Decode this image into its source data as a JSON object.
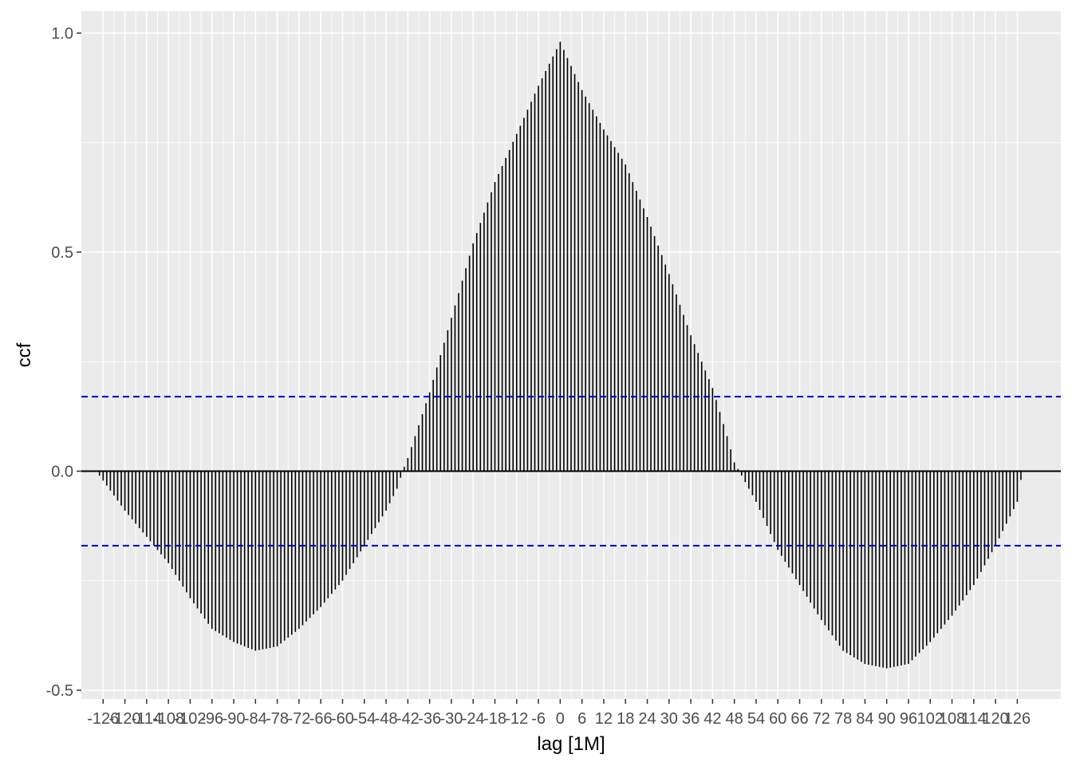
{
  "chart_data": {
    "type": "bar",
    "xlabel": "lag [1M]",
    "ylabel": "ccf",
    "xlim": [
      -132,
      138
    ],
    "ylim": [
      -0.52,
      1.05
    ],
    "grid": true,
    "x_ticks": [
      -126,
      -120,
      -114,
      -108,
      -102,
      -96,
      -90,
      -84,
      -78,
      -72,
      -66,
      -60,
      -54,
      -48,
      -42,
      -36,
      -30,
      -24,
      -18,
      -12,
      -6,
      0,
      6,
      12,
      18,
      24,
      30,
      36,
      42,
      48,
      54,
      60,
      66,
      72,
      78,
      84,
      90,
      96,
      102,
      108,
      114,
      120,
      126
    ],
    "y_ticks": [
      -0.5,
      0.0,
      0.5,
      1.0
    ],
    "y_tick_labels": [
      "-0.5",
      "0.0",
      "0.5",
      "1.0"
    ],
    "confidence_bounds": [
      0.17,
      -0.17
    ],
    "colors": {
      "panel": "#ebebeb",
      "grid": "#ffffff",
      "bar": "#000000",
      "bound": "#0000cc"
    },
    "knots": [
      [
        -127,
        -0.01
      ],
      [
        -120,
        -0.09
      ],
      [
        -114,
        -0.15
      ],
      [
        -108,
        -0.21
      ],
      [
        -102,
        -0.29
      ],
      [
        -96,
        -0.36
      ],
      [
        -90,
        -0.39
      ],
      [
        -84,
        -0.41
      ],
      [
        -78,
        -0.4
      ],
      [
        -72,
        -0.36
      ],
      [
        -66,
        -0.31
      ],
      [
        -60,
        -0.25
      ],
      [
        -54,
        -0.17
      ],
      [
        -48,
        -0.09
      ],
      [
        -45,
        -0.04
      ],
      [
        -43,
        0.01
      ],
      [
        -42,
        0.03
      ],
      [
        -36,
        0.18
      ],
      [
        -30,
        0.35
      ],
      [
        -24,
        0.52
      ],
      [
        -18,
        0.66
      ],
      [
        -12,
        0.77
      ],
      [
        -6,
        0.88
      ],
      [
        0,
        0.98
      ],
      [
        6,
        0.87
      ],
      [
        12,
        0.78
      ],
      [
        18,
        0.7
      ],
      [
        24,
        0.58
      ],
      [
        30,
        0.45
      ],
      [
        36,
        0.31
      ],
      [
        42,
        0.19
      ],
      [
        46,
        0.08
      ],
      [
        48,
        0.02
      ],
      [
        50,
        -0.01
      ],
      [
        54,
        -0.07
      ],
      [
        60,
        -0.18
      ],
      [
        66,
        -0.26
      ],
      [
        72,
        -0.34
      ],
      [
        78,
        -0.41
      ],
      [
        84,
        -0.44
      ],
      [
        90,
        -0.45
      ],
      [
        96,
        -0.44
      ],
      [
        102,
        -0.39
      ],
      [
        108,
        -0.33
      ],
      [
        114,
        -0.26
      ],
      [
        120,
        -0.17
      ],
      [
        126,
        -0.07
      ],
      [
        127,
        -0.02
      ]
    ]
  }
}
